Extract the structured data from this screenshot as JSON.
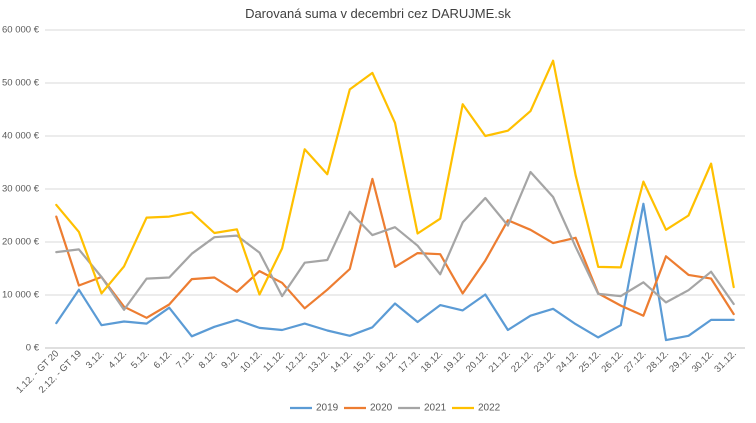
{
  "chart_data": {
    "type": "line",
    "title": "Darovaná suma v decembri cez DARUJME.sk",
    "xlabel": "",
    "ylabel": "",
    "ylim": [
      0,
      60000
    ],
    "y_ticks": [
      "0 €",
      "10 000 €",
      "20 000 €",
      "30 000 €",
      "40 000 €",
      "50 000 €",
      "60 000 €"
    ],
    "y_tick_values": [
      0,
      10000,
      20000,
      30000,
      40000,
      50000,
      60000
    ],
    "grid": true,
    "legend_position": "bottom",
    "categories": [
      "1.12. - GT 20",
      "2.12. - GT 19",
      "3.12.",
      "4.12.",
      "5.12.",
      "6.12.",
      "7.12.",
      "8.12.",
      "9.12.",
      "10.12.",
      "11.12.",
      "12.12.",
      "13.12.",
      "14.12.",
      "15.12.",
      "16.12.",
      "17.12.",
      "18.12.",
      "19.12.",
      "20.12.",
      "21.12.",
      "22.12.",
      "23.12.",
      "24.12.",
      "25.12.",
      "26.12.",
      "27.12.",
      "28.12.",
      "29.12.",
      "30.12.",
      "31.12."
    ],
    "series": [
      {
        "name": "2019",
        "color": "#5B9BD5",
        "values": [
          4700,
          11000,
          4300,
          5000,
          4600,
          7600,
          2200,
          4000,
          5300,
          3800,
          3400,
          4600,
          3300,
          2300,
          3900,
          8400,
          4900,
          8100,
          7100,
          10100,
          3400,
          6100,
          7400,
          4500,
          2000,
          4300,
          27200,
          1500,
          2300,
          5300,
          5300
        ]
      },
      {
        "name": "2020",
        "color": "#ED7D31",
        "values": [
          24800,
          11800,
          13400,
          7800,
          5700,
          8200,
          13000,
          13300,
          10600,
          14500,
          12300,
          7500,
          11000,
          14900,
          31900,
          15300,
          17900,
          17700,
          10300,
          16500,
          24100,
          22300,
          19800,
          20800,
          10300,
          8000,
          6100,
          17300,
          13800,
          13100,
          6400
        ]
      },
      {
        "name": "2021",
        "color": "#A5A5A5",
        "values": [
          18100,
          18600,
          13400,
          7200,
          13100,
          13300,
          17800,
          20900,
          21200,
          18000,
          9800,
          16100,
          16600,
          25700,
          21300,
          22800,
          19300,
          13900,
          23700,
          28300,
          23100,
          33200,
          28500,
          19100,
          10200,
          9800,
          12400,
          8600,
          10900,
          14400,
          8300
        ]
      },
      {
        "name": "2022",
        "color": "#FFC000",
        "values": [
          27000,
          21900,
          10300,
          15400,
          24600,
          24800,
          25600,
          21700,
          22400,
          10100,
          18800,
          37500,
          32800,
          48800,
          51900,
          42500,
          21600,
          24400,
          46000,
          40000,
          41000,
          44700,
          54200,
          32600,
          15300,
          15200,
          31400,
          22300,
          25000,
          34800,
          11500
        ]
      }
    ]
  }
}
